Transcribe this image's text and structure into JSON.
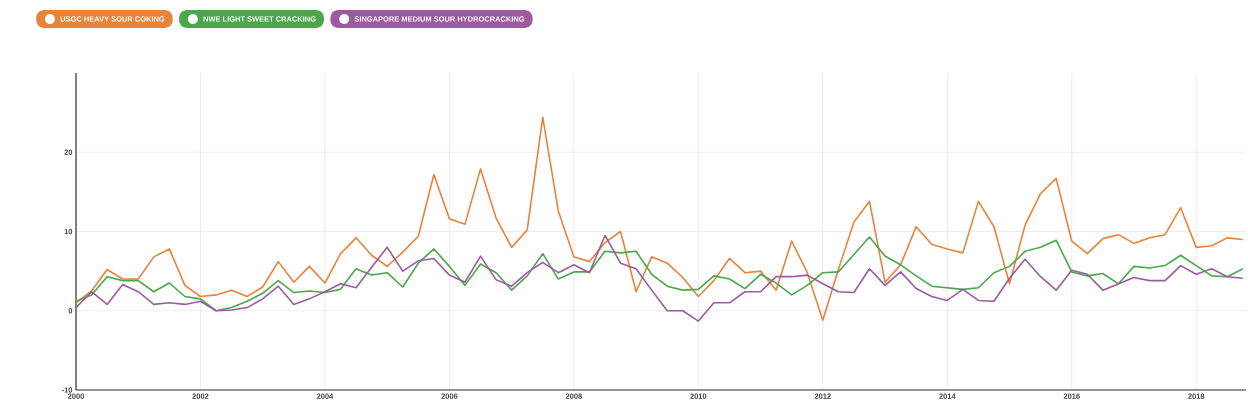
{
  "chart_data": {
    "type": "line",
    "x": [
      2000,
      2000.25,
      2000.5,
      2000.75,
      2001,
      2001.25,
      2001.5,
      2001.75,
      2002,
      2002.25,
      2002.5,
      2002.75,
      2003,
      2003.25,
      2003.5,
      2003.75,
      2004,
      2004.25,
      2004.5,
      2004.75,
      2005,
      2005.25,
      2005.5,
      2005.75,
      2006,
      2006.25,
      2006.5,
      2006.75,
      2007,
      2007.25,
      2007.5,
      2007.75,
      2008,
      2008.25,
      2008.5,
      2008.75,
      2009,
      2009.25,
      2009.5,
      2009.75,
      2010,
      2010.25,
      2010.5,
      2010.75,
      2011,
      2011.25,
      2011.5,
      2011.75,
      2012,
      2012.25,
      2012.5,
      2012.75,
      2013,
      2013.25,
      2013.5,
      2013.75,
      2014,
      2014.25,
      2014.5,
      2014.75,
      2015,
      2015.25,
      2015.5,
      2015.75,
      2016,
      2016.25,
      2016.5,
      2016.75,
      2017,
      2017.25,
      2017.5,
      2017.75,
      2018,
      2018.25,
      2018.5,
      2018.75
    ],
    "series": [
      {
        "name": "USGC HEAVY SOUR COKING",
        "color": "#e8833a",
        "values": [
          1,
          2.5,
          5.2,
          4,
          4,
          6.8,
          7.8,
          3.2,
          1.8,
          2,
          2.6,
          1.8,
          3,
          6.2,
          3.6,
          5.6,
          3.5,
          7.2,
          9.2,
          7,
          5.6,
          7.4,
          9.4,
          17.2,
          11.6,
          10.9,
          17.9,
          11.7,
          8,
          10.2,
          24.4,
          12.6,
          6.8,
          6.2,
          8.6,
          10,
          2.4,
          6.8,
          6,
          4.2,
          1.8,
          3.8,
          6.6,
          4.8,
          5,
          2.6,
          8.8,
          4.8,
          -1.2,
          5.2,
          11.2,
          13.8,
          3.6,
          5.8,
          10.6,
          8.4,
          7.8,
          7.3,
          13.8,
          10.6,
          3.4,
          10.8,
          14.8,
          16.7,
          8.8,
          7.2,
          9.1,
          9.6,
          8.5,
          9.2,
          9.6,
          13,
          8,
          8.2,
          9.2,
          9
        ]
      },
      {
        "name": "NWE LIGHT SWEET CRACKING",
        "color": "#4aa84a",
        "values": [
          1.2,
          2,
          4.3,
          3.8,
          3.8,
          2.4,
          3.5,
          1.8,
          1.5,
          0,
          0.4,
          1.2,
          2.2,
          3.8,
          2.3,
          2.5,
          2.3,
          2.7,
          5.3,
          4.5,
          4.8,
          3,
          6,
          7.8,
          5.6,
          3.2,
          5.9,
          4.8,
          2.6,
          4.4,
          7.2,
          4,
          4.9,
          4.9,
          7.5,
          7.3,
          7.5,
          4.6,
          3.1,
          2.6,
          2.7,
          4.4,
          4,
          2.8,
          4.6,
          3.5,
          2,
          3.2,
          4.8,
          4.9,
          7.1,
          9.3,
          6.9,
          5.8,
          4.4,
          3.1,
          2.9,
          2.7,
          2.9,
          4.8,
          5.6,
          7.5,
          8,
          8.9,
          4.9,
          4.4,
          4.7,
          3.4,
          5.6,
          5.4,
          5.7,
          7,
          5.7,
          4.4,
          4.3,
          5.3
        ]
      },
      {
        "name": "SINGAPORE MEDIUM SOUR HYDROCRACKING",
        "color": "#9e5aa0",
        "values": [
          0.4,
          2.4,
          0.8,
          3.3,
          2.4,
          0.8,
          1,
          0.8,
          1.2,
          0,
          0.1,
          0.4,
          1.5,
          3.1,
          0.8,
          1.5,
          2.4,
          3.4,
          2.9,
          5.5,
          8,
          5,
          6.3,
          6.6,
          4.5,
          3.6,
          6.9,
          3.9,
          3.1,
          4.8,
          6.1,
          4.8,
          5.8,
          4.8,
          9.5,
          6,
          5.3,
          2.6,
          0,
          0,
          -1.3,
          1,
          1,
          2.4,
          2.4,
          4.3,
          4.3,
          4.5,
          3.4,
          2.4,
          2.3,
          5.3,
          3.2,
          4.9,
          2.8,
          1.8,
          1.3,
          2.7,
          1.3,
          1.2,
          4.1,
          6.5,
          4.3,
          2.6,
          5.1,
          4.6,
          2.6,
          3.4,
          4.2,
          3.8,
          3.8,
          5.7,
          4.6,
          5.3,
          4.3,
          4.1
        ]
      }
    ],
    "xlim": [
      2000,
      2018.8
    ],
    "ylim": [
      -10,
      30
    ],
    "xticks": [
      2000,
      2002,
      2004,
      2006,
      2008,
      2010,
      2012,
      2014,
      2016,
      2018
    ],
    "yticks": [
      -10,
      0,
      10,
      20
    ],
    "grid": true,
    "legend": "top left"
  }
}
